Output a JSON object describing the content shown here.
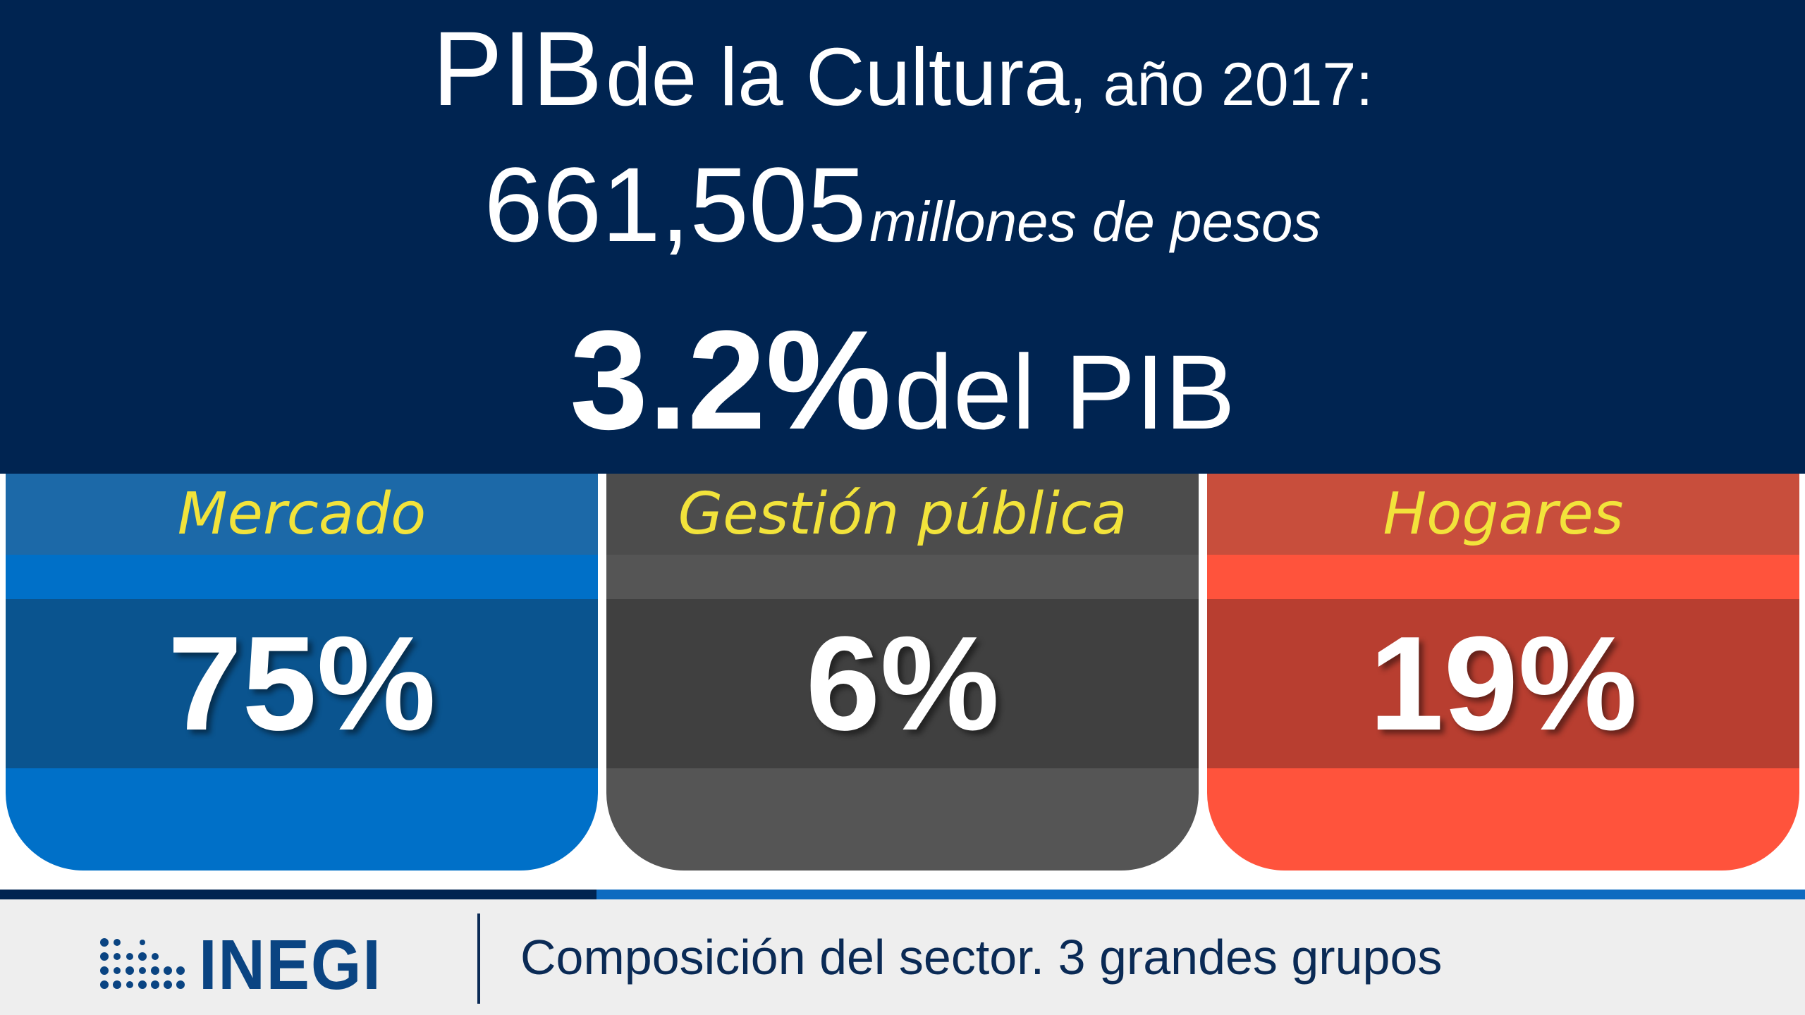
{
  "header": {
    "title_main": "PIB",
    "title_mid": "de la Cultura",
    "title_small": ", año 2017:",
    "value_number": "661,505",
    "value_unit": "millones de pesos",
    "share_percent": "3.2%",
    "share_text": "del PIB",
    "background_color": "#002451"
  },
  "cards": [
    {
      "label": "Mercado",
      "value": "75%",
      "color": "#0070c8"
    },
    {
      "label": "Gestión pública",
      "value": "6%",
      "color": "#555555"
    },
    {
      "label": "Hogares",
      "value": "19%",
      "color": "#ff533c"
    }
  ],
  "footer": {
    "logo_text": "INEGI",
    "logo_icon": "inegi-dots-logo-icon",
    "caption": "Composición del sector. 3 grandes grupos"
  }
}
